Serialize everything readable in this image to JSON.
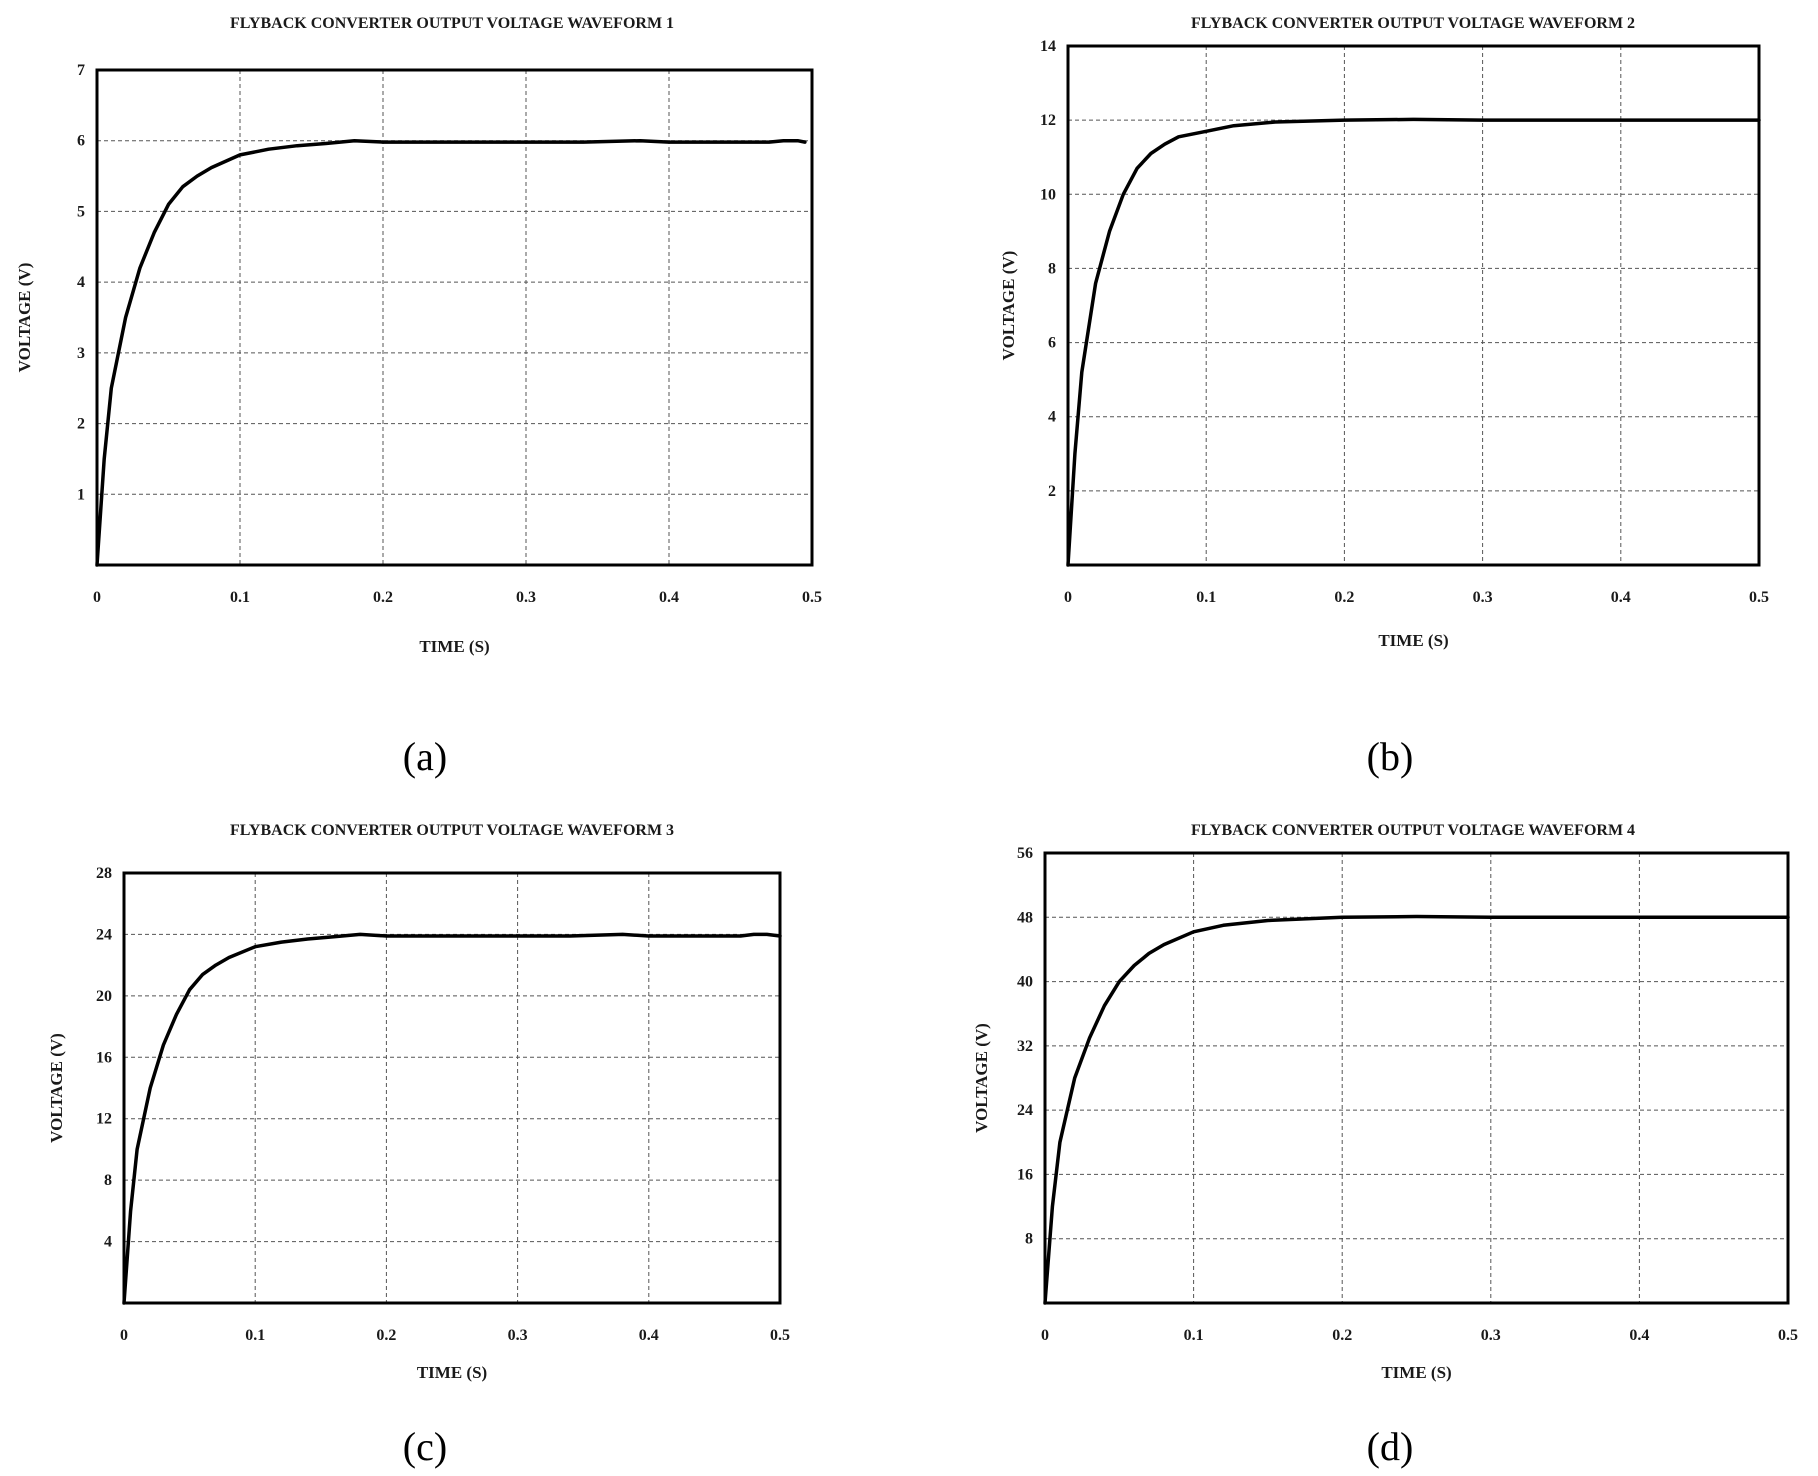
{
  "chart_data": [
    {
      "type": "line",
      "title": "FLYBACK CONVERTER OUTPUT VOLTAGE WAVEFORM 1",
      "xlabel": "TIME (S)",
      "ylabel": "VOLTAGE (V)",
      "caption": "(a)",
      "xlim": [
        0,
        0.5
      ],
      "ylim": [
        0,
        7
      ],
      "xticks": [
        0,
        0.1,
        0.2,
        0.3,
        0.4,
        0.5
      ],
      "xtick_labels": [
        "0",
        "0.1",
        "0.2",
        "0.3",
        "0.4",
        "0.5"
      ],
      "yticks": [
        1,
        2,
        3,
        4,
        5,
        6,
        7
      ],
      "ytick_labels": [
        "1",
        "2",
        "3",
        "4",
        "5",
        "6",
        "7"
      ],
      "grid": true,
      "series": [
        {
          "x": [
            0,
            0.005,
            0.01,
            0.02,
            0.03,
            0.04,
            0.05,
            0.06,
            0.07,
            0.08,
            0.1,
            0.12,
            0.14,
            0.16,
            0.18,
            0.2,
            0.25,
            0.3,
            0.34,
            0.38,
            0.4,
            0.45,
            0.47,
            0.48,
            0.49,
            0.495
          ],
          "y": [
            0,
            1.5,
            2.5,
            3.5,
            4.2,
            4.7,
            5.1,
            5.35,
            5.5,
            5.62,
            5.8,
            5.88,
            5.93,
            5.96,
            6.0,
            5.98,
            5.98,
            5.98,
            5.98,
            6.0,
            5.98,
            5.98,
            5.98,
            6.0,
            6.0,
            5.98
          ]
        }
      ]
    },
    {
      "type": "line",
      "title": "FLYBACK CONVERTER OUTPUT VOLTAGE WAVEFORM 2",
      "xlabel": "TIME (S)",
      "ylabel": "VOLTAGE (V)",
      "caption": "(b)",
      "xlim": [
        0,
        0.5
      ],
      "ylim": [
        0,
        14
      ],
      "xticks": [
        0,
        0.1,
        0.2,
        0.3,
        0.4,
        0.5
      ],
      "xtick_labels": [
        "0",
        "0.1",
        "0.2",
        "0.3",
        "0.4",
        "0.5"
      ],
      "yticks": [
        2,
        4,
        6,
        8,
        10,
        12,
        14
      ],
      "ytick_labels": [
        "2",
        "4",
        "6",
        "8",
        "10",
        "12",
        "14"
      ],
      "grid": true,
      "series": [
        {
          "x": [
            0,
            0.005,
            0.01,
            0.02,
            0.03,
            0.04,
            0.05,
            0.06,
            0.07,
            0.08,
            0.1,
            0.12,
            0.15,
            0.2,
            0.25,
            0.3,
            0.4,
            0.5
          ],
          "y": [
            0,
            3.0,
            5.2,
            7.6,
            9.0,
            10.0,
            10.7,
            11.1,
            11.35,
            11.55,
            11.7,
            11.85,
            11.95,
            12.0,
            12.02,
            12.0,
            12.0,
            12.0
          ]
        }
      ]
    },
    {
      "type": "line",
      "title": "FLYBACK CONVERTER OUTPUT VOLTAGE WAVEFORM 3",
      "xlabel": "TIME (S)",
      "ylabel": "VOLTAGE (V)",
      "caption": "(c)",
      "xlim": [
        0,
        0.5
      ],
      "ylim": [
        0,
        28
      ],
      "xticks": [
        0,
        0.1,
        0.2,
        0.3,
        0.4,
        0.5
      ],
      "xtick_labels": [
        "0",
        "0.1",
        "0.2",
        "0.3",
        "0.4",
        "0.5"
      ],
      "yticks": [
        4,
        8,
        12,
        16,
        20,
        24,
        28
      ],
      "ytick_labels": [
        "4",
        "8",
        "12",
        "16",
        "20",
        "24",
        "28"
      ],
      "grid": true,
      "series": [
        {
          "x": [
            0,
            0.005,
            0.01,
            0.02,
            0.03,
            0.04,
            0.05,
            0.06,
            0.07,
            0.08,
            0.1,
            0.12,
            0.14,
            0.16,
            0.18,
            0.2,
            0.25,
            0.3,
            0.34,
            0.38,
            0.4,
            0.45,
            0.47,
            0.48,
            0.49,
            0.5
          ],
          "y": [
            0,
            6,
            10,
            14,
            16.8,
            18.8,
            20.4,
            21.4,
            22.0,
            22.5,
            23.2,
            23.5,
            23.7,
            23.85,
            24.0,
            23.9,
            23.9,
            23.9,
            23.9,
            24.0,
            23.9,
            23.9,
            23.9,
            24.0,
            24.0,
            23.9
          ]
        }
      ]
    },
    {
      "type": "line",
      "title": "FLYBACK CONVERTER OUTPUT VOLTAGE WAVEFORM 4",
      "xlabel": "TIME (S)",
      "ylabel": "VOLTAGE (V)",
      "caption": "(d)",
      "xlim": [
        0,
        0.5
      ],
      "ylim": [
        0,
        56
      ],
      "xticks": [
        0,
        0.1,
        0.2,
        0.3,
        0.4,
        0.5
      ],
      "xtick_labels": [
        "0",
        "0.1",
        "0.2",
        "0.3",
        "0.4",
        "0.5"
      ],
      "yticks": [
        8,
        16,
        24,
        32,
        40,
        48,
        56
      ],
      "ytick_labels": [
        "8",
        "16",
        "24",
        "32",
        "40",
        "48",
        "56"
      ],
      "grid": true,
      "series": [
        {
          "x": [
            0,
            0.005,
            0.01,
            0.02,
            0.03,
            0.04,
            0.05,
            0.06,
            0.07,
            0.08,
            0.1,
            0.12,
            0.15,
            0.2,
            0.25,
            0.3,
            0.4,
            0.5
          ],
          "y": [
            0,
            12,
            20,
            28,
            33,
            37,
            40,
            42,
            43.5,
            44.6,
            46.2,
            47.0,
            47.6,
            48.0,
            48.1,
            48.0,
            48.0,
            48.0
          ]
        }
      ]
    }
  ]
}
